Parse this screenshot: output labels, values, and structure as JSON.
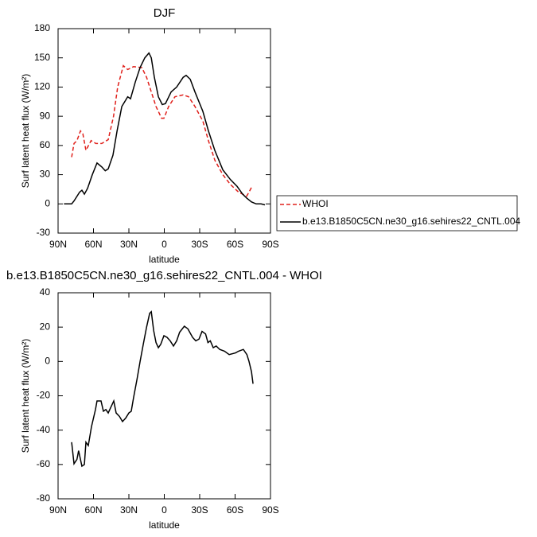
{
  "chart_data": [
    {
      "type": "line",
      "title": "DJF",
      "xlabel": "latitude",
      "ylabel": "Surf latent heat flux (W/m²)",
      "xlim": [
        90,
        -90
      ],
      "xticks": [
        {
          "value": 90,
          "label": "90N"
        },
        {
          "value": 60,
          "label": "60N"
        },
        {
          "value": 30,
          "label": "30N"
        },
        0,
        {
          "value": -30,
          "label": "30S"
        },
        {
          "value": -60,
          "label": "60S"
        },
        {
          "value": -90,
          "label": "90S"
        }
      ],
      "ylim": [
        -30,
        180
      ],
      "yticks": [
        -30,
        0,
        30,
        60,
        90,
        120,
        150,
        180
      ],
      "legend": "right",
      "series": [
        {
          "name": "WHOI",
          "color": "#e0201b",
          "line_style": "dashed",
          "x": [
            78.5,
            76.5,
            74,
            71,
            69,
            66.4,
            62,
            58,
            53,
            47.5,
            43,
            39.5,
            34.7,
            31,
            26,
            19,
            15,
            11,
            7,
            2.3,
            0.3,
            -3.7,
            -9,
            -16,
            -20.6,
            -26,
            -32.7,
            -37.4,
            -42.8,
            -49.6,
            -56,
            -63,
            -69.8,
            -71.8,
            -73.9
          ],
          "values": [
            48,
            62,
            65,
            75,
            72,
            55,
            65,
            62,
            62,
            66,
            90,
            120,
            142,
            138,
            141,
            140,
            130,
            115,
            100,
            88,
            88,
            100,
            110,
            112,
            110,
            100,
            85,
            65,
            45,
            30,
            20,
            12,
            8,
            12,
            17
          ]
        },
        {
          "name": "b.e13.B1850C5CN.ne30_g16.sehires22_CNTL.004",
          "color": "#000000",
          "line_style": "solid",
          "x": [
            85,
            78.5,
            76.5,
            71.8,
            69.8,
            67.7,
            65,
            61,
            57,
            53,
            50,
            47.5,
            43.5,
            40,
            36,
            31,
            28.6,
            24.6,
            20.5,
            16.5,
            13,
            11,
            8.4,
            5,
            1.7,
            -1,
            -5.8,
            -10.5,
            -16,
            -18.5,
            -22,
            -26,
            -32.7,
            -37.4,
            -42.8,
            -49.6,
            -56,
            -61.7,
            -66.4,
            -69.8,
            -73.9,
            -77.9,
            -82,
            -85.3
          ],
          "values": [
            0,
            0,
            3,
            12,
            14,
            10,
            16,
            30,
            42,
            38,
            34,
            36,
            50,
            75,
            100,
            110,
            108,
            125,
            140,
            150,
            155,
            150,
            130,
            110,
            102,
            103,
            115,
            120,
            130,
            132,
            128,
            115,
            95,
            75,
            55,
            35,
            25,
            18,
            10,
            6,
            2,
            0,
            0,
            -1
          ]
        }
      ]
    },
    {
      "type": "line",
      "title": "b.e13.B1850C5CN.ne30_g16.sehires22_CNTL.004 - WHOI",
      "xlabel": "latitude",
      "ylabel": "Surf latent heat flux (W/m²)",
      "xlim": [
        90,
        -90
      ],
      "xticks": [
        {
          "value": 90,
          "label": "90N"
        },
        {
          "value": 60,
          "label": "60N"
        },
        {
          "value": 30,
          "label": "30N"
        },
        0,
        {
          "value": -30,
          "label": "30S"
        },
        {
          "value": -60,
          "label": "60S"
        },
        {
          "value": -90,
          "label": "90S"
        }
      ],
      "ylim": [
        -80,
        40
      ],
      "yticks": [
        -80,
        -60,
        -40,
        -20,
        0,
        20,
        40
      ],
      "series": [
        {
          "color": "#000000",
          "line_style": "solid",
          "x": [
            78.5,
            76.5,
            74,
            72.6,
            69.8,
            67.7,
            66.4,
            64.4,
            61.7,
            58.3,
            57,
            53.6,
            51.6,
            49.5,
            47.5,
            45.5,
            42.8,
            40.8,
            38,
            35.4,
            32.7,
            30,
            28,
            26,
            23,
            20.5,
            17.8,
            15,
            12.4,
            11,
            9,
            7,
            5,
            3,
            0.3,
            -2.4,
            -5,
            -7.8,
            -10.5,
            -13,
            -17,
            -20,
            -24,
            -26.7,
            -29.4,
            -32,
            -35,
            -37,
            -39,
            -41.5,
            -44,
            -47,
            -51,
            -55,
            -60.4,
            -63,
            -67,
            -70,
            -71.8,
            -73.9,
            -75.2
          ],
          "values": [
            -47,
            -59.6,
            -57,
            -52,
            -61,
            -60,
            -47,
            -49,
            -38,
            -28,
            -23,
            -23,
            -29,
            -28,
            -30,
            -27,
            -23,
            -30,
            -32,
            -35,
            -33,
            -30,
            -29,
            -21,
            -10,
            0,
            10,
            20,
            28,
            29,
            18,
            11,
            8,
            10,
            15,
            14,
            12,
            9,
            12,
            17,
            20.5,
            19,
            14,
            12,
            13,
            17.5,
            16,
            11,
            12,
            8,
            9,
            7,
            6,
            4,
            5,
            6,
            7,
            4,
            0,
            -6,
            -13
          ]
        }
      ]
    }
  ]
}
